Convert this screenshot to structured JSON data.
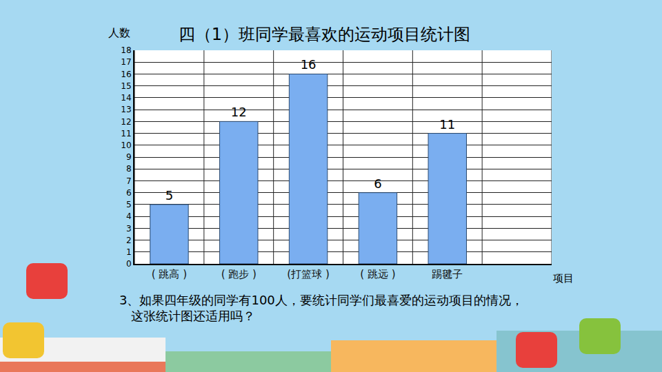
{
  "chart_data": {
    "type": "bar",
    "title": "四（1）班同学最喜欢的运动项目统计图",
    "x_label": "项目",
    "y_label": "人数",
    "categories": [
      "( 跳高 )",
      "( 跑步 )",
      "(打篮球 )",
      "( 跳远 )",
      "踢毽子"
    ],
    "values": [
      5,
      12,
      16,
      6,
      11
    ],
    "color": "#7aaef0",
    "ylim": [
      0,
      18
    ],
    "yticks": [
      0,
      1,
      2,
      3,
      4,
      5,
      6,
      7,
      8,
      9,
      10,
      11,
      12,
      13,
      14,
      15,
      16,
      17,
      18
    ],
    "grid": true,
    "data_labels": true,
    "annotations": [
      "3、如果四年级的同学有100人，要统计同学们最喜爱的运动项目的情况，这张统计图还适用吗？"
    ]
  }
}
